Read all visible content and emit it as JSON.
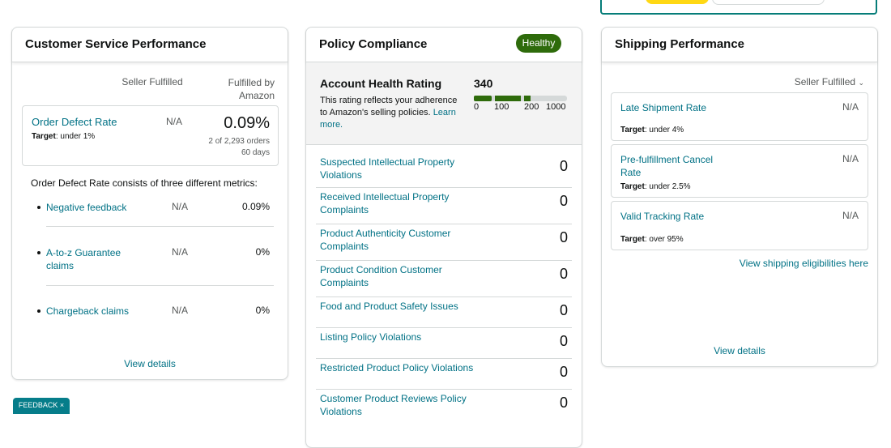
{
  "customer_service": {
    "title": "Customer Service Performance",
    "columns": [
      "Seller Fulfilled",
      "Fulfilled by Amazon"
    ],
    "order_defect_rate": {
      "label": "Order Defect Rate",
      "target_label": "Target",
      "target": ": under 1%",
      "seller": "N/A",
      "amazon": "0.09%",
      "orders": "2 of 2,293 orders",
      "period": "60 days"
    },
    "intro": "Order Defect Rate consists of three different metrics:",
    "metrics": [
      {
        "name": "Negative feedback",
        "seller": "N/A",
        "amazon": "0.09%"
      },
      {
        "name": "A-to-z Guarantee claims",
        "seller": "N/A",
        "amazon": "0%"
      },
      {
        "name": "Chargeback claims",
        "seller": "N/A",
        "amazon": "0%"
      }
    ],
    "link": "View details"
  },
  "policy_compliance": {
    "title": "Policy Compliance",
    "status": "Healthy",
    "rating": {
      "title": "Account Health Rating",
      "score": "340",
      "description": "This rating reflects your adherence to Amazon's selling policies.",
      "link": "Learn more.",
      "scale": [
        "0",
        "100",
        "200",
        "1000"
      ]
    },
    "rows": [
      {
        "label": "Suspected Intellectual Property Violations",
        "count": "0"
      },
      {
        "label": "Received Intellectual Property Complaints",
        "count": "0"
      },
      {
        "label": "Product Authenticity Customer Complaints",
        "count": "0"
      },
      {
        "label": "Product Condition Customer Complaints",
        "count": "0"
      },
      {
        "label": "Food and Product Safety Issues",
        "count": "0"
      },
      {
        "label": "Listing Policy Violations",
        "count": "0"
      },
      {
        "label": "Restricted Product Policy Violations",
        "count": "0"
      },
      {
        "label": "Customer Product Reviews Policy Violations",
        "count": "0"
      }
    ]
  },
  "shipping": {
    "title": "Shipping Performance",
    "filter": "Seller Fulfilled",
    "metrics": [
      {
        "name": "Late Shipment Rate",
        "target_label": "Target",
        "target": ": under 4%",
        "value": "N/A"
      },
      {
        "name": "Pre-fulfillment Cancel Rate",
        "target_label": "Target",
        "target": ": under 2.5%",
        "value": "N/A"
      },
      {
        "name": "Valid Tracking Rate",
        "target_label": "Target",
        "target": ": over 95%",
        "value": "N/A"
      }
    ],
    "eligibility_link": "View shipping eligibilities here",
    "link": "View details"
  },
  "feedback": "FEEDBACK"
}
